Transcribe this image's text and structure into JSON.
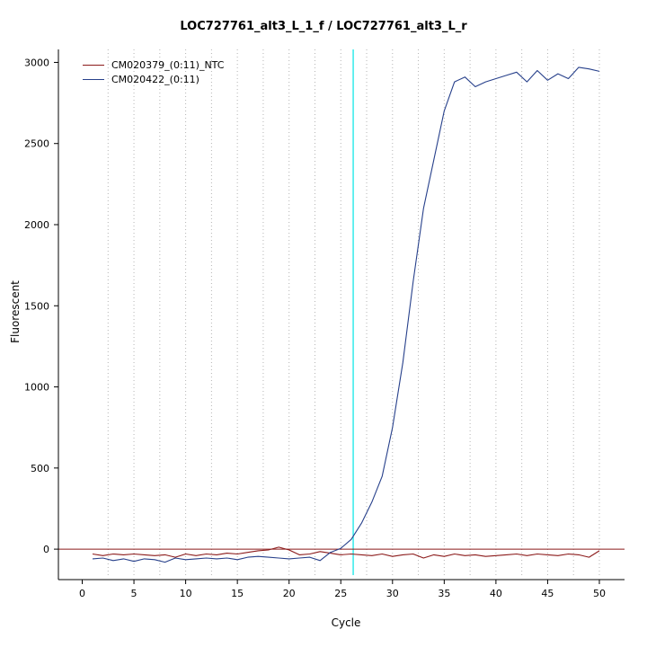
{
  "chart_data": {
    "type": "line",
    "title": "LOC727761_alt3_L_1_f / LOC727761_alt3_L_r",
    "xlabel": "Cycle",
    "ylabel": "Fluorescent",
    "xlim": [
      -1,
      52
    ],
    "ylim": [
      -160,
      3080
    ],
    "x_ticks": [
      0,
      5,
      10,
      15,
      20,
      25,
      30,
      35,
      40,
      45,
      50
    ],
    "y_ticks": [
      0,
      500,
      1000,
      1500,
      2000,
      2500,
      3000
    ],
    "grid": {
      "vertical_start": 2.5,
      "vertical_step": 2.5,
      "vertical_end": 50,
      "color": "#b4b4b4"
    },
    "threshold_line": {
      "y": 0,
      "color": "#8b1a1a"
    },
    "vline": {
      "x": 26.2,
      "color": "#00e5e5"
    },
    "legend_position": "top-left",
    "x": [
      1,
      2,
      3,
      4,
      5,
      6,
      7,
      8,
      9,
      10,
      11,
      12,
      13,
      14,
      15,
      16,
      17,
      18,
      19,
      20,
      21,
      22,
      23,
      24,
      25,
      26,
      27,
      28,
      29,
      30,
      31,
      32,
      33,
      34,
      35,
      36,
      37,
      38,
      39,
      40,
      41,
      42,
      43,
      44,
      45,
      46,
      47,
      48,
      49,
      50
    ],
    "series": [
      {
        "name": "CM020379_(0:11)_NTC",
        "color": "#8b1a1a",
        "values": [
          -30,
          -40,
          -30,
          -35,
          -30,
          -35,
          -40,
          -35,
          -50,
          -30,
          -40,
          -30,
          -35,
          -25,
          -30,
          -20,
          -10,
          -5,
          12,
          -5,
          -35,
          -30,
          -15,
          -25,
          -35,
          -30,
          -35,
          -40,
          -30,
          -45,
          -35,
          -30,
          -55,
          -35,
          -45,
          -30,
          -40,
          -35,
          -45,
          -40,
          -35,
          -30,
          -40,
          -30,
          -35,
          -40,
          -30,
          -35,
          -50,
          -10
        ]
      },
      {
        "name": "CM020422_(0:11)",
        "color": "#27408b",
        "values": [
          -60,
          -55,
          -70,
          -60,
          -75,
          -60,
          -65,
          -80,
          -55,
          -65,
          -60,
          -55,
          -60,
          -55,
          -65,
          -50,
          -45,
          -50,
          -55,
          -60,
          -55,
          -50,
          -70,
          -20,
          5,
          60,
          160,
          290,
          450,
          750,
          1150,
          1650,
          2100,
          2400,
          2700,
          2880,
          2910,
          2850,
          2880,
          2900,
          2920,
          2940,
          2880,
          2950,
          2890,
          2930,
          2900,
          2970,
          2960,
          2945
        ]
      }
    ]
  }
}
